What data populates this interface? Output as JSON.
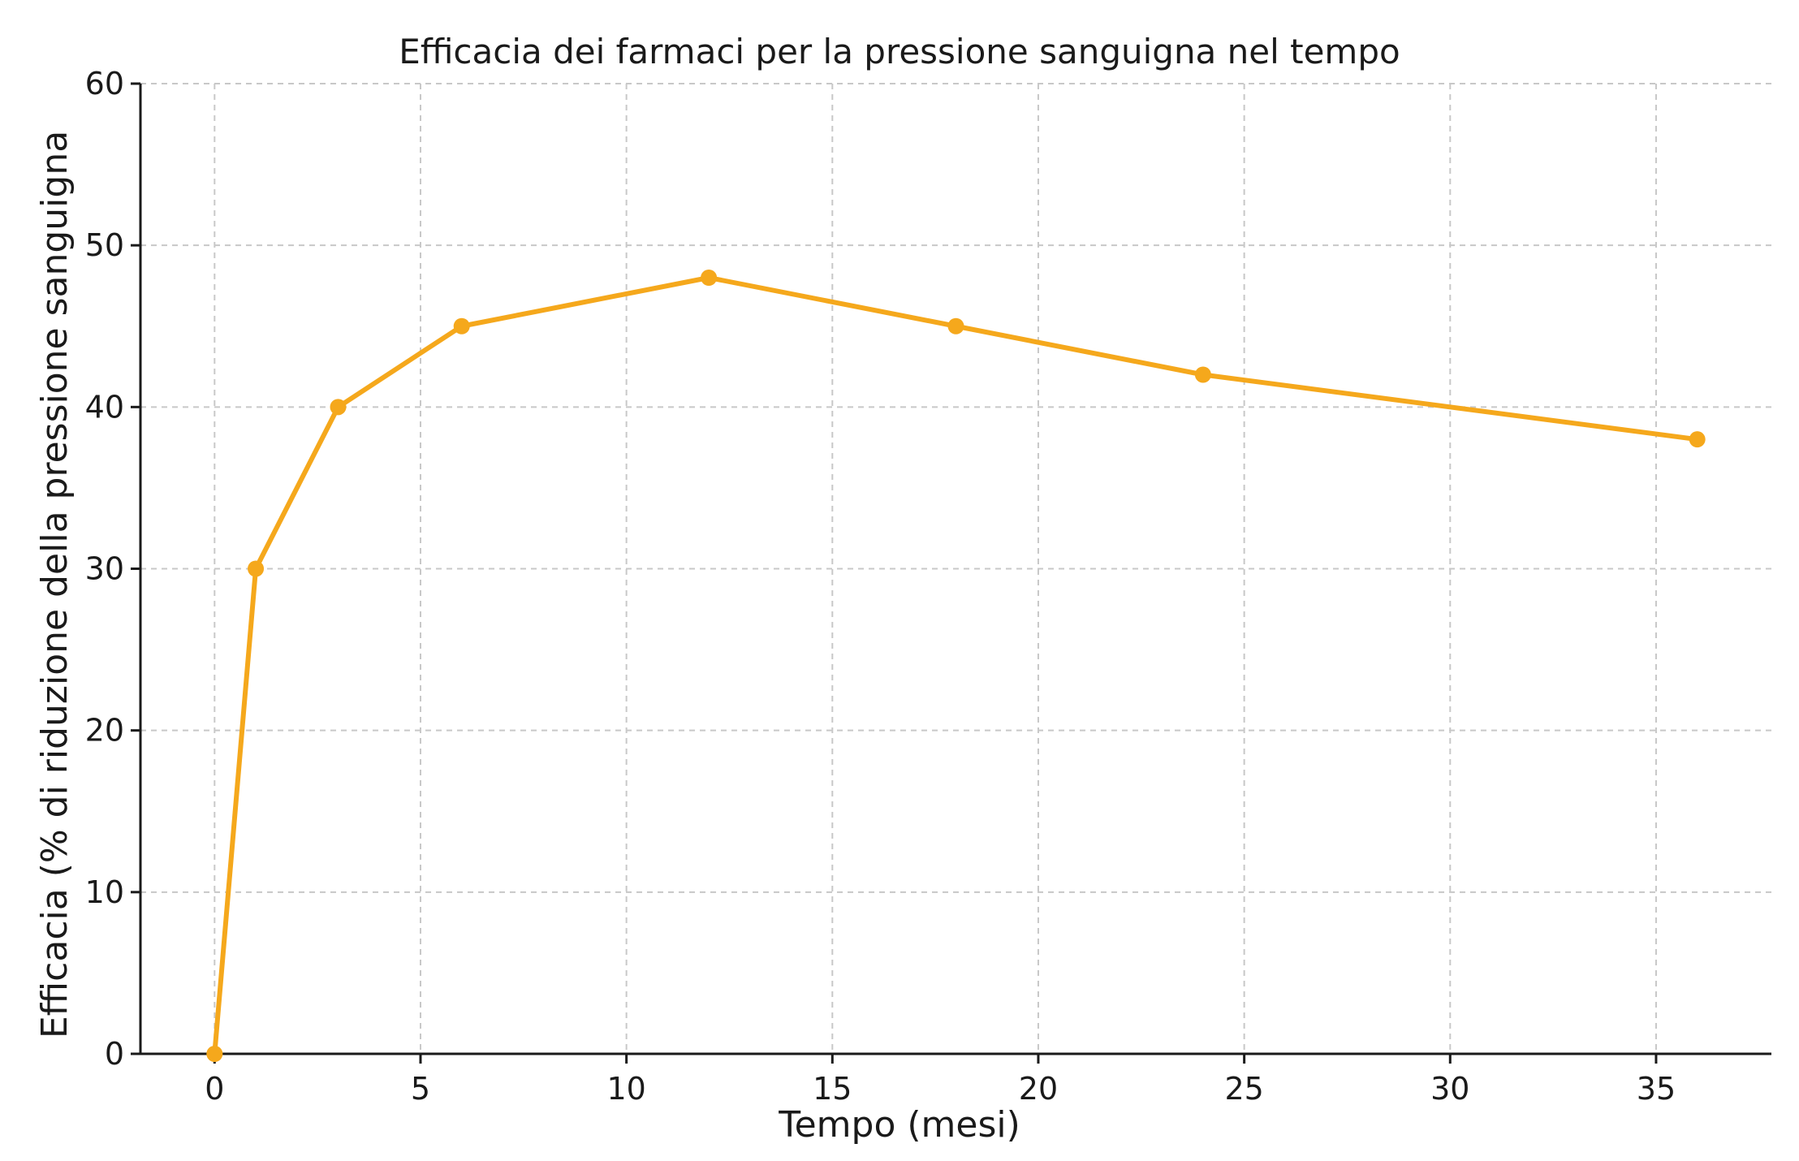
{
  "chart_data": {
    "type": "line",
    "title": "Efficacia dei farmaci per la pressione sanguigna nel tempo",
    "xlabel": "Tempo (mesi)",
    "ylabel": "Efficacia (% di riduzione della pressione sanguigna",
    "x": [
      0,
      1,
      3,
      6,
      12,
      18,
      24,
      36
    ],
    "series": [
      {
        "values": [
          0,
          30,
          40,
          45,
          48,
          45,
          42,
          38
        ],
        "color": "#F5A81C",
        "marker": "circle"
      }
    ],
    "xlim": [
      -1.8,
      37.8
    ],
    "ylim": [
      0,
      60
    ],
    "xticks": [
      0,
      5,
      10,
      15,
      20,
      25,
      30,
      35
    ],
    "yticks": [
      0,
      10,
      20,
      30,
      40,
      50,
      60
    ],
    "grid": true,
    "legend": "none"
  }
}
